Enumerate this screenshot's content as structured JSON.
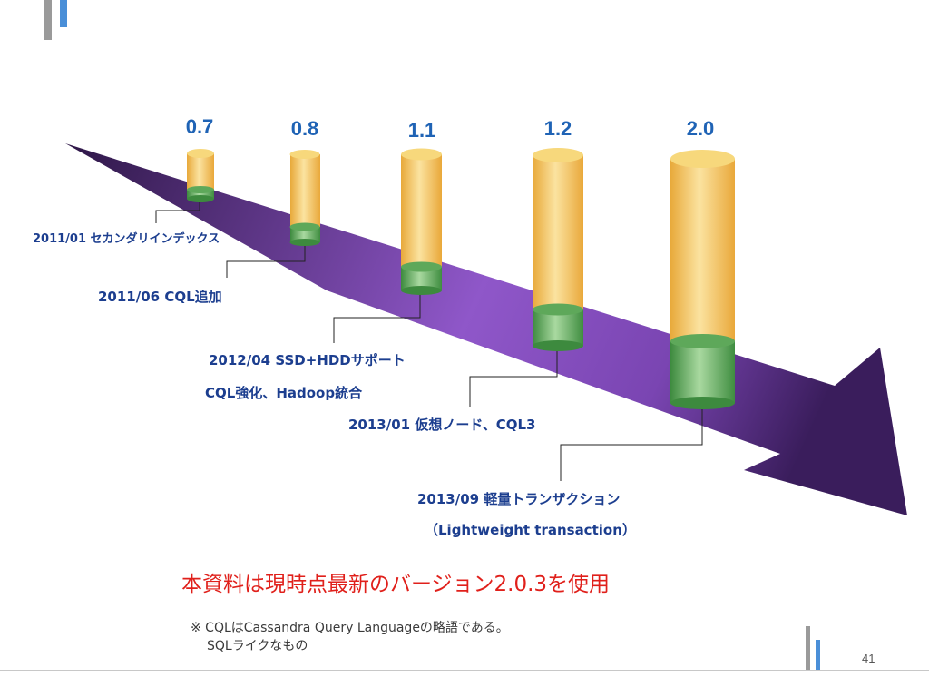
{
  "versions": [
    "0.7",
    "0.8",
    "1.1",
    "1.2",
    "2.0"
  ],
  "events": [
    "2011/01 セカンダリインデックス",
    "2011/06  CQL追加",
    "2012/04  SSD+HDDサポート",
    "CQL強化、Hadoop統合",
    "2013/01 仮想ノード、CQL3",
    "2013/09 軽量トランザクション",
    "（Lightweight transaction）"
  ],
  "notice": "本資料は現時点最新のバージョン2.0.3を使用",
  "footnote": [
    "※ CQLはCassandra Query Languageの略語である。",
    "SQLライクなもの"
  ],
  "page_number": "41",
  "colors": {
    "arrow_dark": "#3f1f63",
    "arrow_light": "#8f57c9",
    "cylinder_gold": "#f0bd4f",
    "cylinder_green": "#5ea85a",
    "version_text": "#1f63b5",
    "notice_text": "#e0201b",
    "accent_gray": "#9a9a9a",
    "accent_blue": "#4a8fd8"
  }
}
